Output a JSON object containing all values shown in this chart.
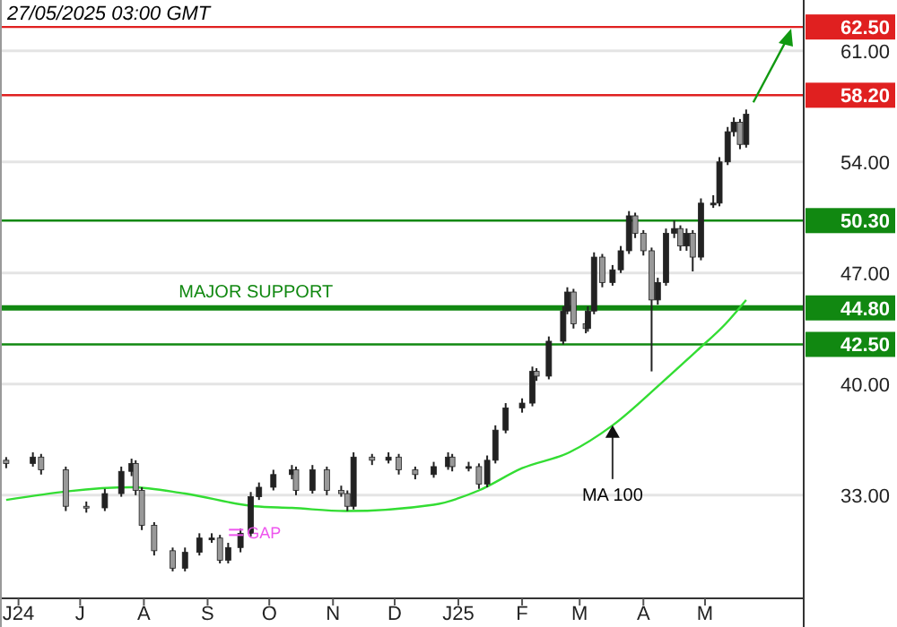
{
  "chart_data": {
    "type": "candlestick",
    "title": "27/05/2025 03:00 GMT",
    "x": [
      "2024-05-26",
      "2024-06-08",
      "2024-06-12",
      "2024-06-24",
      "2024-07-04",
      "2024-07-13",
      "2024-07-21",
      "2024-07-26",
      "2024-07-28",
      "2024-07-31",
      "2024-08-06",
      "2024-08-15",
      "2024-08-21",
      "2024-08-28",
      "2024-09-03",
      "2024-09-07",
      "2024-09-11",
      "2024-09-17",
      "2024-09-22",
      "2024-09-26",
      "2024-10-03",
      "2024-10-12",
      "2024-10-14",
      "2024-10-22",
      "2024-10-29",
      "2024-11-05",
      "2024-11-08",
      "2024-11-11",
      "2024-11-20",
      "2024-11-28",
      "2024-12-03",
      "2024-12-11",
      "2024-12-20",
      "2024-12-27",
      "2024-12-29",
      "2025-01-06",
      "2025-01-11",
      "2025-01-15",
      "2025-01-19",
      "2025-01-24",
      "2025-02-01",
      "2025-02-06",
      "2025-02-08",
      "2025-02-14",
      "2025-02-21",
      "2025-02-23",
      "2025-02-26",
      "2025-03-04",
      "2025-03-05",
      "2025-03-08",
      "2025-03-12",
      "2025-03-17",
      "2025-03-21",
      "2025-03-25",
      "2025-03-28",
      "2025-04-01",
      "2025-04-05",
      "2025-04-08",
      "2025-04-12",
      "2025-04-16",
      "2025-04-19",
      "2025-04-22",
      "2025-04-25",
      "2025-04-29",
      "2025-05-05",
      "2025-05-08",
      "2025-05-12",
      "2025-05-15",
      "2025-05-18",
      "2025-05-21"
    ],
    "ohlc": [
      [
        35.2,
        35.4,
        34.7,
        35.0
      ],
      [
        35.0,
        35.7,
        34.8,
        35.4
      ],
      [
        35.4,
        35.6,
        34.3,
        34.6
      ],
      [
        34.6,
        34.8,
        32.0,
        32.3
      ],
      [
        32.3,
        32.6,
        31.9,
        32.2
      ],
      [
        32.2,
        33.4,
        32.0,
        33.1
      ],
      [
        33.1,
        34.8,
        32.9,
        34.5
      ],
      [
        34.5,
        35.3,
        34.2,
        35.0
      ],
      [
        35.0,
        35.2,
        33.0,
        33.3
      ],
      [
        33.3,
        33.5,
        30.8,
        31.1
      ],
      [
        31.1,
        31.3,
        29.2,
        29.5
      ],
      [
        29.5,
        29.7,
        28.2,
        28.4
      ],
      [
        28.4,
        29.7,
        28.2,
        29.4
      ],
      [
        29.4,
        30.6,
        29.2,
        30.3
      ],
      [
        30.3,
        30.6,
        30.0,
        30.3
      ],
      [
        30.3,
        30.5,
        28.7,
        28.9
      ],
      [
        28.9,
        30.0,
        28.7,
        29.7
      ],
      [
        29.7,
        30.9,
        29.4,
        30.6
      ],
      [
        30.6,
        33.2,
        30.4,
        32.9
      ],
      [
        32.9,
        33.8,
        32.7,
        33.5
      ],
      [
        33.5,
        34.6,
        33.3,
        34.3
      ],
      [
        34.3,
        34.9,
        34.0,
        34.6
      ],
      [
        34.6,
        34.8,
        33.0,
        33.3
      ],
      [
        33.3,
        34.9,
        33.1,
        34.6
      ],
      [
        34.6,
        34.8,
        33.0,
        33.3
      ],
      [
        33.3,
        33.6,
        32.9,
        33.1
      ],
      [
        33.1,
        33.3,
        32.0,
        32.3
      ],
      [
        32.3,
        35.7,
        32.1,
        35.4
      ],
      [
        35.4,
        35.6,
        34.9,
        35.2
      ],
      [
        35.2,
        35.7,
        35.0,
        35.4
      ],
      [
        35.4,
        35.6,
        34.3,
        34.6
      ],
      [
        34.6,
        34.8,
        34.0,
        34.3
      ],
      [
        34.3,
        35.1,
        34.1,
        34.8
      ],
      [
        34.8,
        35.7,
        34.6,
        35.4
      ],
      [
        35.4,
        35.6,
        34.5,
        34.8
      ],
      [
        34.8,
        35.1,
        34.5,
        34.8
      ],
      [
        34.8,
        35.0,
        33.4,
        33.7
      ],
      [
        33.7,
        35.5,
        33.5,
        35.2
      ],
      [
        35.2,
        37.4,
        35.0,
        37.1
      ],
      [
        37.1,
        38.8,
        36.9,
        38.5
      ],
      [
        38.5,
        39.1,
        38.2,
        38.8
      ],
      [
        38.8,
        41.1,
        38.6,
        40.8
      ],
      [
        40.8,
        41.0,
        40.2,
        40.5
      ],
      [
        40.5,
        43.0,
        40.3,
        42.7
      ],
      [
        42.7,
        44.9,
        42.5,
        44.6
      ],
      [
        44.6,
        46.1,
        44.4,
        45.8
      ],
      [
        45.8,
        46.0,
        43.5,
        43.8
      ],
      [
        43.8,
        44.0,
        43.2,
        43.5
      ],
      [
        43.5,
        44.9,
        43.3,
        44.6
      ],
      [
        44.6,
        48.3,
        44.4,
        48.0
      ],
      [
        48.0,
        48.2,
        46.1,
        46.4
      ],
      [
        46.4,
        47.5,
        46.2,
        47.2
      ],
      [
        47.2,
        48.7,
        47.0,
        48.4
      ],
      [
        48.4,
        50.9,
        48.2,
        50.6
      ],
      [
        50.6,
        50.8,
        49.2,
        49.5
      ],
      [
        49.5,
        49.7,
        48.1,
        48.4
      ],
      [
        48.4,
        48.6,
        40.8,
        45.3
      ],
      [
        45.3,
        46.7,
        45.0,
        46.4
      ],
      [
        46.4,
        49.8,
        46.2,
        49.5
      ],
      [
        49.5,
        50.3,
        49.2,
        49.8
      ],
      [
        49.8,
        50.0,
        48.4,
        48.7
      ],
      [
        48.7,
        49.8,
        48.4,
        49.5
      ],
      [
        49.5,
        49.7,
        47.1,
        48.0
      ],
      [
        48.0,
        51.7,
        47.8,
        51.4
      ],
      [
        51.4,
        51.9,
        51.1,
        51.4
      ],
      [
        51.4,
        54.3,
        51.2,
        54.0
      ],
      [
        54.0,
        56.2,
        53.8,
        55.9
      ],
      [
        55.9,
        56.8,
        55.6,
        56.5
      ],
      [
        56.5,
        56.7,
        54.8,
        55.1
      ],
      [
        55.1,
        57.3,
        54.9,
        57.0
      ]
    ],
    "series": [
      {
        "name": "MA 100",
        "type": "line",
        "color": "#33dd33",
        "x": [
          "2024-05-26",
          "2024-07-26",
          "2024-08-21",
          "2024-09-24",
          "2024-10-12",
          "2024-11-07",
          "2024-12-20",
          "2025-01-11",
          "2025-02-01",
          "2025-02-24",
          "2025-03-17",
          "2025-04-10",
          "2025-04-27",
          "2025-05-11",
          "2025-05-21"
        ],
        "values": [
          32.7,
          33.5,
          33.1,
          32.3,
          32.2,
          32.0,
          32.4,
          33.3,
          34.7,
          35.7,
          37.4,
          40.1,
          42.1,
          43.8,
          45.3
        ]
      }
    ],
    "xlim": [
      "2024-05-23",
      "2025-06-18"
    ],
    "xticks": [
      {
        "value": "2024-06-01",
        "label": "J24"
      },
      {
        "value": "2024-07-01",
        "label": "J"
      },
      {
        "value": "2024-08-01",
        "label": "A"
      },
      {
        "value": "2024-09-01",
        "label": "S"
      },
      {
        "value": "2024-10-01",
        "label": "O"
      },
      {
        "value": "2024-11-01",
        "label": "N"
      },
      {
        "value": "2024-12-01",
        "label": "D"
      },
      {
        "value": "2025-01-01",
        "label": "J25"
      },
      {
        "value": "2025-02-01",
        "label": "F"
      },
      {
        "value": "2025-03-01",
        "label": "M"
      },
      {
        "value": "2025-04-01",
        "label": "A"
      },
      {
        "value": "2025-05-01",
        "label": "M"
      }
    ],
    "ylim": [
      26.5,
      64.2
    ],
    "yticks": [
      {
        "value": 33,
        "label": "33.00"
      },
      {
        "value": 40,
        "label": "40.00"
      },
      {
        "value": 47,
        "label": "47.00"
      },
      {
        "value": 54,
        "label": "54.00"
      },
      {
        "value": 61,
        "label": "61.00"
      }
    ],
    "grid": "y",
    "ref_lines": [
      {
        "axis": "y",
        "value": 62.5,
        "label": "62.50",
        "color": "#e02020"
      },
      {
        "axis": "y",
        "value": 58.2,
        "label": "58.20",
        "color": "#e02020"
      },
      {
        "axis": "y",
        "value": 50.3,
        "label": "50.30",
        "color": "#118811"
      },
      {
        "axis": "y",
        "value": 44.8,
        "label": "44.80",
        "color": "#118811"
      },
      {
        "axis": "y",
        "value": 42.5,
        "label": "42.50",
        "color": "#118811"
      }
    ],
    "annotations": [
      {
        "text": "MAJOR SUPPORT",
        "x": "2024-08-18",
        "y": 44.8
      },
      {
        "text": "GAP",
        "x": "2024-09-14",
        "y": 30.6
      }
    ]
  }
}
